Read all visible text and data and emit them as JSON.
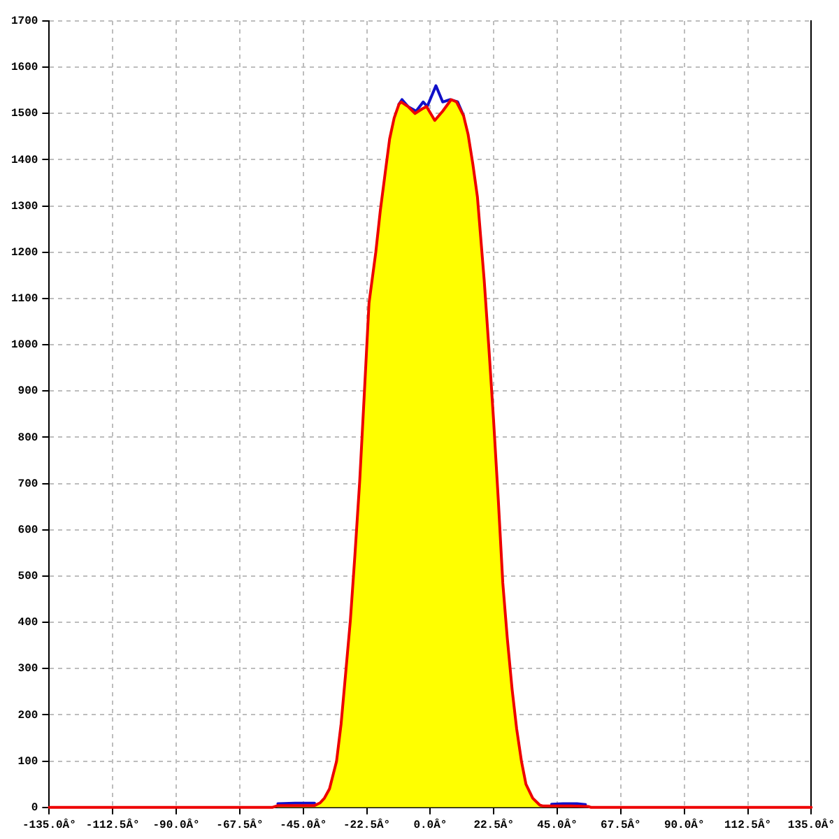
{
  "chart_data": {
    "type": "line",
    "xlim": [
      -135,
      135
    ],
    "xticks": [
      {
        "value": -135,
        "label": "-135.0Â°"
      },
      {
        "value": -112.5,
        "label": "-112.5Â°"
      },
      {
        "value": -90,
        "label": "-90.0Â°"
      },
      {
        "value": -67.5,
        "label": "-67.5Â°"
      },
      {
        "value": -45,
        "label": "-45.0Â°"
      },
      {
        "value": -22.5,
        "label": "-22.5Â°"
      },
      {
        "value": 0,
        "label": "0.0Â°"
      },
      {
        "value": 22.5,
        "label": "22.5Â°"
      },
      {
        "value": 45,
        "label": "45.0Â°"
      },
      {
        "value": 67.5,
        "label": "67.5Â°"
      },
      {
        "value": 90,
        "label": "90.0Â°"
      },
      {
        "value": 112.5,
        "label": "112.5Â°"
      },
      {
        "value": 135,
        "label": "135.0Â°"
      }
    ],
    "ylim": [
      0,
      1700
    ],
    "yticks": [
      0,
      100,
      200,
      300,
      400,
      500,
      600,
      700,
      800,
      900,
      1000,
      1100,
      1200,
      1300,
      1400,
      1500,
      1600,
      1700
    ],
    "grid": true,
    "series": [
      {
        "type": "area",
        "color": "#ffff00",
        "x": [
          -135,
          -56,
          -54,
          -41,
          -39,
          -37.5,
          -35.7,
          -33.2,
          -31.6,
          -29.9,
          -28.3,
          -26.7,
          -25,
          -23.4,
          -21.7,
          -19.3,
          -17.7,
          -16,
          -14.4,
          -12.8,
          -11.1,
          -10.3,
          -7.9,
          -5.4,
          -2.9,
          -1.3,
          1.6,
          4.4,
          7.4,
          9.3,
          11.8,
          13.4,
          15.1,
          16.7,
          18.3,
          19.1,
          20.8,
          22.4,
          24.1,
          25.7,
          27.3,
          29,
          30.6,
          32.3,
          33.9,
          36.3,
          38.8,
          40,
          50,
          56,
          57,
          135
        ],
        "values": [
          0,
          0,
          4,
          4,
          10,
          20,
          40,
          100,
          180,
          295,
          405,
          545,
          705,
          890,
          1090,
          1200,
          1290,
          1370,
          1445,
          1490,
          1520,
          1525,
          1515,
          1500,
          1510,
          1515,
          1485,
          1505,
          1530,
          1525,
          1495,
          1455,
          1390,
          1320,
          1200,
          1140,
          990,
          840,
          665,
          485,
          365,
          255,
          170,
          100,
          50,
          20,
          5,
          3,
          3,
          2,
          0,
          0
        ]
      },
      {
        "type": "line",
        "color": "#1010c8",
        "x": [
          -54,
          -48,
          -41,
          -30,
          -11.1,
          -10,
          -7.9,
          -5,
          -2.5,
          -1.1,
          2,
          4.4,
          7,
          9.7,
          11.8,
          30,
          43,
          47,
          52,
          55
        ],
        "values": [
          8,
          9,
          9,
          null,
          1520,
          1530,
          1515,
          1505,
          1525,
          1515,
          1560,
          1525,
          1530,
          1525,
          1495,
          null,
          7,
          8,
          8,
          6
        ]
      }
    ]
  }
}
